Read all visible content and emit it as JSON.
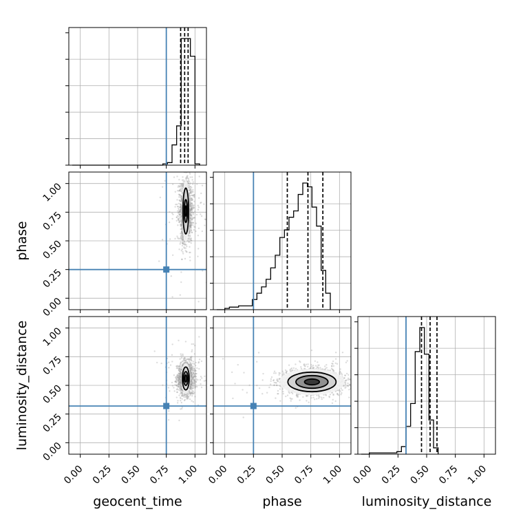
{
  "chart_data": {
    "type": "corner",
    "parameters": [
      "geocent_time",
      "phase",
      "luminosity_distance"
    ],
    "truths": {
      "geocent_time": 0.75,
      "phase": 0.25,
      "luminosity_distance": 0.32
    },
    "axis_range": [
      -0.1,
      1.1
    ],
    "tick_values": [
      0.0,
      0.25,
      0.5,
      0.75,
      1.0
    ],
    "tick_labels": [
      "0.00",
      "0.25",
      "0.50",
      "0.75",
      "1.00"
    ],
    "grid": true,
    "colors": {
      "truth": "#4682b4",
      "hist": "#000000",
      "points": "#9a9a9a"
    },
    "histograms": {
      "geocent_time": {
        "bin_width": 0.04,
        "bins": [
          {
            "x": 0.68,
            "v": 0.0
          },
          {
            "x": 0.72,
            "v": 0.01
          },
          {
            "x": 0.76,
            "v": 0.02
          },
          {
            "x": 0.8,
            "v": 0.16
          },
          {
            "x": 0.84,
            "v": 0.31
          },
          {
            "x": 0.88,
            "v": 1.0
          },
          {
            "x": 0.92,
            "v": 1.0
          },
          {
            "x": 0.96,
            "v": 0.86
          },
          {
            "x": 1.0,
            "v": 0.01
          }
        ],
        "quantiles": [
          0.875,
          0.91,
          0.94
        ]
      },
      "phase": {
        "bin_width": 0.04,
        "bins": [
          {
            "x": 0.0,
            "v": 0.01
          },
          {
            "x": 0.04,
            "v": 0.02
          },
          {
            "x": 0.08,
            "v": 0.02
          },
          {
            "x": 0.12,
            "v": 0.03
          },
          {
            "x": 0.16,
            "v": 0.03
          },
          {
            "x": 0.2,
            "v": 0.03
          },
          {
            "x": 0.24,
            "v": 0.08
          },
          {
            "x": 0.28,
            "v": 0.13
          },
          {
            "x": 0.32,
            "v": 0.18
          },
          {
            "x": 0.36,
            "v": 0.24
          },
          {
            "x": 0.4,
            "v": 0.33
          },
          {
            "x": 0.44,
            "v": 0.43
          },
          {
            "x": 0.48,
            "v": 0.57
          },
          {
            "x": 0.52,
            "v": 0.63
          },
          {
            "x": 0.56,
            "v": 0.73
          },
          {
            "x": 0.6,
            "v": 0.78
          },
          {
            "x": 0.64,
            "v": 0.91
          },
          {
            "x": 0.68,
            "v": 1.0
          },
          {
            "x": 0.72,
            "v": 0.97
          },
          {
            "x": 0.76,
            "v": 0.81
          },
          {
            "x": 0.8,
            "v": 0.66
          },
          {
            "x": 0.84,
            "v": 0.31
          },
          {
            "x": 0.88,
            "v": 0.13
          }
        ],
        "quantiles": [
          0.545,
          0.725,
          0.855
        ]
      },
      "luminosity_distance": {
        "bin_width": 0.04,
        "bins": [
          {
            "x": 0.0,
            "v": 0.01
          },
          {
            "x": 0.04,
            "v": 0.01
          },
          {
            "x": 0.08,
            "v": 0.01
          },
          {
            "x": 0.12,
            "v": 0.01
          },
          {
            "x": 0.16,
            "v": 0.01
          },
          {
            "x": 0.2,
            "v": 0.01
          },
          {
            "x": 0.24,
            "v": 0.02
          },
          {
            "x": 0.28,
            "v": 0.06
          },
          {
            "x": 0.32,
            "v": 0.22
          },
          {
            "x": 0.36,
            "v": 0.4
          },
          {
            "x": 0.4,
            "v": 0.81
          },
          {
            "x": 0.44,
            "v": 1.0
          },
          {
            "x": 0.48,
            "v": 0.79
          },
          {
            "x": 0.52,
            "v": 0.27
          },
          {
            "x": 0.56,
            "v": 0.05
          }
        ],
        "quantiles": [
          0.455,
          0.53,
          0.59
        ]
      }
    },
    "pairs": [
      {
        "x": "geocent_time",
        "y": "phase",
        "center": [
          0.92,
          0.76
        ],
        "spread": [
          0.03,
          0.14
        ],
        "contour_levels": [
          [
            0.025,
            0.2
          ],
          [
            0.014,
            0.1
          ],
          [
            0.007,
            0.045
          ]
        ]
      },
      {
        "x": "geocent_time",
        "y": "luminosity_distance",
        "center": [
          0.92,
          0.56
        ],
        "spread": [
          0.035,
          0.07
        ],
        "contour_levels": [
          [
            0.03,
            0.1
          ],
          [
            0.02,
            0.06
          ],
          [
            0.01,
            0.03
          ]
        ]
      },
      {
        "x": "phase",
        "y": "luminosity_distance",
        "center": [
          0.76,
          0.53
        ],
        "spread": [
          0.14,
          0.06
        ],
        "contour_levels": [
          [
            0.21,
            0.085
          ],
          [
            0.14,
            0.055
          ],
          [
            0.065,
            0.025
          ]
        ]
      }
    ]
  }
}
